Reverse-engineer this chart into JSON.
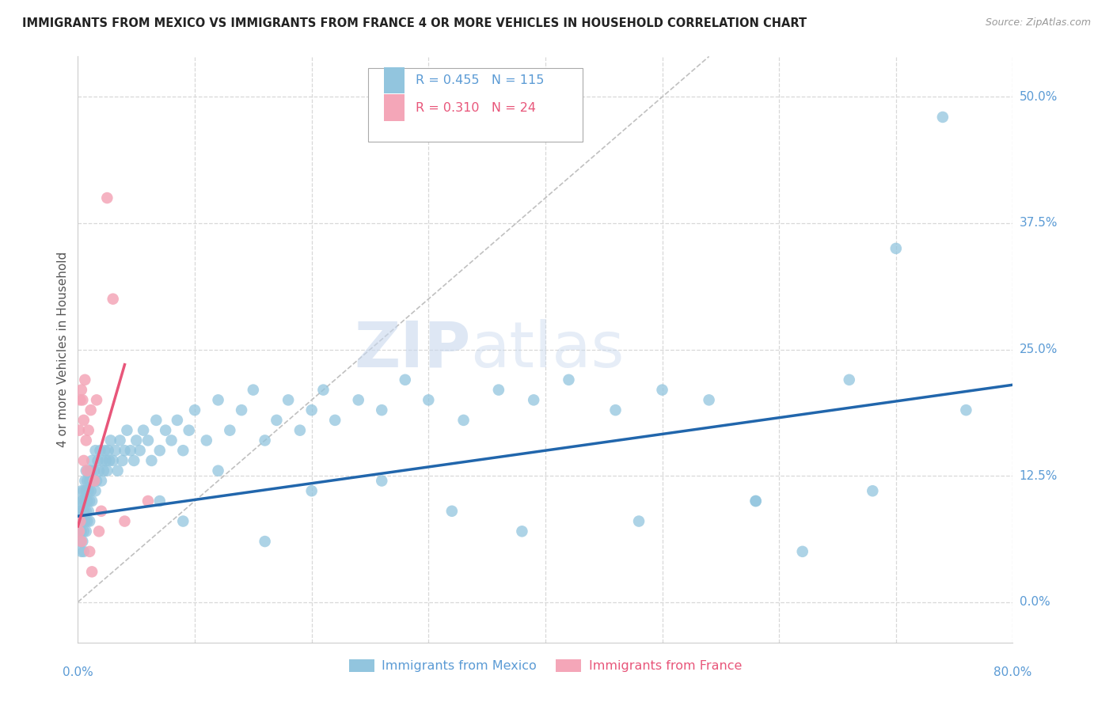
{
  "title": "IMMIGRANTS FROM MEXICO VS IMMIGRANTS FROM FRANCE 4 OR MORE VEHICLES IN HOUSEHOLD CORRELATION CHART",
  "source": "Source: ZipAtlas.com",
  "ylabel": "4 or more Vehicles in Household",
  "xlim": [
    0.0,
    0.8
  ],
  "ylim": [
    -0.04,
    0.54
  ],
  "yticks": [
    0.0,
    0.125,
    0.25,
    0.375,
    0.5
  ],
  "ytick_labels": [
    "0.0%",
    "12.5%",
    "25.0%",
    "37.5%",
    "50.0%"
  ],
  "xticks": [
    0.0,
    0.1,
    0.2,
    0.3,
    0.4,
    0.5,
    0.6,
    0.7,
    0.8
  ],
  "mexico_R": 0.455,
  "mexico_N": 115,
  "france_R": 0.31,
  "france_N": 24,
  "mexico_color": "#92c5de",
  "france_color": "#f4a6b8",
  "mexico_line_color": "#2166ac",
  "france_line_color": "#e8567a",
  "diagonal_color": "#c0c0c0",
  "background_color": "#ffffff",
  "grid_color": "#d8d8d8",
  "tick_label_color": "#5b9bd5",
  "france_label_color": "#e8567a",
  "legend_label_mexico": "Immigrants from Mexico",
  "legend_label_france": "Immigrants from France",
  "watermark_zip": "ZIP",
  "watermark_atlas": "atlas",
  "mexico_line_x0": 0.0,
  "mexico_line_x1": 0.8,
  "mexico_line_y0": 0.085,
  "mexico_line_y1": 0.215,
  "france_line_x0": 0.0,
  "france_line_x1": 0.04,
  "france_line_y0": 0.075,
  "france_line_y1": 0.235,
  "mexico_x": [
    0.001,
    0.001,
    0.002,
    0.002,
    0.002,
    0.003,
    0.003,
    0.003,
    0.003,
    0.004,
    0.004,
    0.004,
    0.005,
    0.005,
    0.005,
    0.005,
    0.006,
    0.006,
    0.006,
    0.007,
    0.007,
    0.007,
    0.007,
    0.008,
    0.008,
    0.008,
    0.009,
    0.009,
    0.009,
    0.01,
    0.01,
    0.01,
    0.011,
    0.011,
    0.012,
    0.012,
    0.013,
    0.014,
    0.015,
    0.015,
    0.016,
    0.017,
    0.018,
    0.019,
    0.02,
    0.021,
    0.022,
    0.023,
    0.024,
    0.025,
    0.026,
    0.027,
    0.028,
    0.03,
    0.032,
    0.034,
    0.036,
    0.038,
    0.04,
    0.042,
    0.045,
    0.048,
    0.05,
    0.053,
    0.056,
    0.06,
    0.063,
    0.067,
    0.07,
    0.075,
    0.08,
    0.085,
    0.09,
    0.095,
    0.1,
    0.11,
    0.12,
    0.13,
    0.14,
    0.15,
    0.16,
    0.17,
    0.18,
    0.19,
    0.2,
    0.21,
    0.22,
    0.24,
    0.26,
    0.28,
    0.3,
    0.33,
    0.36,
    0.39,
    0.42,
    0.46,
    0.5,
    0.54,
    0.58,
    0.62,
    0.66,
    0.7,
    0.74,
    0.76,
    0.68,
    0.58,
    0.48,
    0.38,
    0.32,
    0.26,
    0.2,
    0.16,
    0.12,
    0.09,
    0.07
  ],
  "mexico_y": [
    0.07,
    0.09,
    0.06,
    0.08,
    0.1,
    0.07,
    0.09,
    0.11,
    0.05,
    0.08,
    0.1,
    0.06,
    0.09,
    0.07,
    0.11,
    0.05,
    0.1,
    0.08,
    0.12,
    0.09,
    0.11,
    0.07,
    0.13,
    0.1,
    0.08,
    0.12,
    0.11,
    0.09,
    0.13,
    0.1,
    0.12,
    0.08,
    0.11,
    0.13,
    0.1,
    0.14,
    0.12,
    0.13,
    0.11,
    0.15,
    0.12,
    0.14,
    0.13,
    0.15,
    0.12,
    0.14,
    0.13,
    0.15,
    0.14,
    0.13,
    0.15,
    0.14,
    0.16,
    0.14,
    0.15,
    0.13,
    0.16,
    0.14,
    0.15,
    0.17,
    0.15,
    0.14,
    0.16,
    0.15,
    0.17,
    0.16,
    0.14,
    0.18,
    0.15,
    0.17,
    0.16,
    0.18,
    0.15,
    0.17,
    0.19,
    0.16,
    0.2,
    0.17,
    0.19,
    0.21,
    0.16,
    0.18,
    0.2,
    0.17,
    0.19,
    0.21,
    0.18,
    0.2,
    0.19,
    0.22,
    0.2,
    0.18,
    0.21,
    0.2,
    0.22,
    0.19,
    0.21,
    0.2,
    0.1,
    0.05,
    0.22,
    0.35,
    0.48,
    0.19,
    0.11,
    0.1,
    0.08,
    0.07,
    0.09,
    0.12,
    0.11,
    0.06,
    0.13,
    0.08,
    0.1
  ],
  "france_x": [
    0.001,
    0.001,
    0.002,
    0.002,
    0.003,
    0.003,
    0.004,
    0.005,
    0.005,
    0.006,
    0.007,
    0.008,
    0.009,
    0.01,
    0.011,
    0.012,
    0.014,
    0.016,
    0.018,
    0.02,
    0.025,
    0.03,
    0.04,
    0.06
  ],
  "france_y": [
    0.07,
    0.17,
    0.08,
    0.2,
    0.06,
    0.21,
    0.2,
    0.14,
    0.18,
    0.22,
    0.16,
    0.13,
    0.17,
    0.05,
    0.19,
    0.03,
    0.12,
    0.2,
    0.07,
    0.09,
    0.4,
    0.3,
    0.08,
    0.1
  ]
}
